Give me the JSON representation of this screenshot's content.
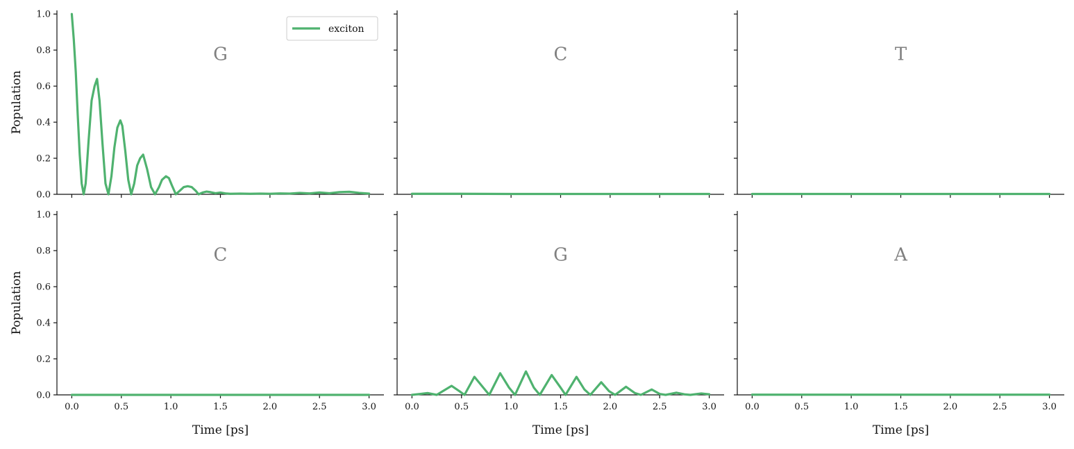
{
  "chart_data": {
    "type": "line",
    "layout": "2x3 grid, shared axes",
    "series_color": "#4fb26f",
    "legend": {
      "placement": "upper-right of first panel",
      "label": "exciton"
    },
    "xlim": [
      -0.15,
      3.15
    ],
    "ylim": [
      0.0,
      1.02
    ],
    "x_ticks": [
      0.0,
      0.5,
      1.0,
      1.5,
      2.0,
      2.5,
      3.0
    ],
    "x_tick_labels": [
      "0.0",
      "0.5",
      "1.0",
      "1.5",
      "2.0",
      "2.5",
      "3.0"
    ],
    "y_ticks": [
      0.0,
      0.2,
      0.4,
      0.6,
      0.8,
      1.0
    ],
    "y_tick_labels": [
      "0.0",
      "0.2",
      "0.4",
      "0.6",
      "0.8",
      "1.0"
    ],
    "xlabel": "Time [ps]",
    "ylabel": "Population",
    "panels": [
      {
        "title": "G",
        "series": [
          {
            "name": "exciton",
            "x": [
              0.0,
              0.02,
              0.04,
              0.06,
              0.08,
              0.1,
              0.12,
              0.14,
              0.17,
              0.2,
              0.23,
              0.255,
              0.28,
              0.31,
              0.34,
              0.37,
              0.4,
              0.43,
              0.46,
              0.49,
              0.51,
              0.54,
              0.57,
              0.6,
              0.63,
              0.66,
              0.69,
              0.72,
              0.76,
              0.8,
              0.84,
              0.88,
              0.91,
              0.95,
              0.98,
              1.01,
              1.05,
              1.09,
              1.13,
              1.17,
              1.21,
              1.25,
              1.28,
              1.32,
              1.36,
              1.4,
              1.45,
              1.5,
              1.55,
              1.6,
              1.7,
              1.8,
              1.9,
              2.0,
              2.1,
              2.2,
              2.3,
              2.4,
              2.5,
              2.6,
              2.7,
              2.8,
              2.9,
              3.0
            ],
            "y": [
              1.0,
              0.86,
              0.68,
              0.44,
              0.22,
              0.06,
              0.0,
              0.06,
              0.3,
              0.52,
              0.6,
              0.64,
              0.52,
              0.28,
              0.06,
              0.0,
              0.1,
              0.26,
              0.37,
              0.41,
              0.38,
              0.24,
              0.08,
              0.0,
              0.06,
              0.16,
              0.2,
              0.22,
              0.14,
              0.04,
              0.0,
              0.04,
              0.08,
              0.1,
              0.09,
              0.05,
              0.0,
              0.02,
              0.04,
              0.045,
              0.04,
              0.02,
              0.0,
              0.01,
              0.015,
              0.012,
              0.006,
              0.01,
              0.005,
              0.003,
              0.004,
              0.003,
              0.004,
              0.003,
              0.005,
              0.004,
              0.008,
              0.005,
              0.01,
              0.006,
              0.012,
              0.014,
              0.008,
              0.004
            ]
          }
        ]
      },
      {
        "title": "C",
        "series": [
          {
            "name": "exciton",
            "x": [
              0.0,
              0.5,
              1.0,
              1.5,
              2.0,
              2.5,
              3.0
            ],
            "y": [
              0.003,
              0.003,
              0.002,
              0.002,
              0.002,
              0.002,
              0.002
            ]
          }
        ]
      },
      {
        "title": "T",
        "series": [
          {
            "name": "exciton",
            "x": [
              0.0,
              0.5,
              1.0,
              1.5,
              2.0,
              2.5,
              3.0
            ],
            "y": [
              0.002,
              0.002,
              0.002,
              0.002,
              0.002,
              0.002,
              0.002
            ]
          }
        ]
      },
      {
        "title": "C",
        "series": [
          {
            "name": "exciton",
            "x": [
              0.0,
              0.5,
              1.0,
              1.5,
              2.0,
              2.5,
              3.0
            ],
            "y": [
              0.0,
              0.0,
              0.0,
              0.0,
              0.0,
              0.0,
              0.0
            ]
          }
        ]
      },
      {
        "title": "G",
        "series": [
          {
            "name": "exciton",
            "x": [
              0.0,
              0.08,
              0.16,
              0.25,
              0.31,
              0.4,
              0.48,
              0.53,
              0.63,
              0.72,
              0.78,
              0.89,
              0.98,
              1.04,
              1.15,
              1.23,
              1.29,
              1.41,
              1.5,
              1.55,
              1.66,
              1.74,
              1.8,
              1.91,
              1.99,
              2.05,
              2.16,
              2.25,
              2.31,
              2.42,
              2.5,
              2.56,
              2.67,
              2.75,
              2.81,
              2.92,
              3.0
            ],
            "y": [
              0.0,
              0.005,
              0.01,
              0.0,
              0.02,
              0.05,
              0.02,
              0.0,
              0.1,
              0.04,
              0.0,
              0.12,
              0.04,
              0.0,
              0.13,
              0.04,
              0.0,
              0.11,
              0.04,
              0.0,
              0.1,
              0.03,
              0.0,
              0.07,
              0.02,
              0.0,
              0.045,
              0.01,
              0.0,
              0.03,
              0.005,
              0.0,
              0.012,
              0.003,
              0.0,
              0.008,
              0.003
            ]
          }
        ]
      },
      {
        "title": "A",
        "series": [
          {
            "name": "exciton",
            "x": [
              0.0,
              0.5,
              1.0,
              1.5,
              2.0,
              2.5,
              3.0
            ],
            "y": [
              0.001,
              0.001,
              0.001,
              0.001,
              0.001,
              0.001,
              0.001
            ]
          }
        ]
      }
    ]
  }
}
